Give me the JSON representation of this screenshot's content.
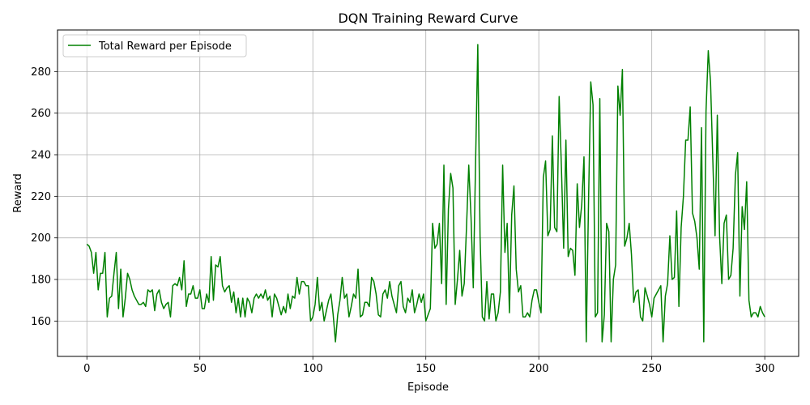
{
  "chart_data": {
    "type": "line",
    "title": "DQN Training Reward Curve",
    "xlabel": "Episode",
    "ylabel": "Reward",
    "xlim": [
      -13,
      315
    ],
    "ylim": [
      143,
      300
    ],
    "xticks": [
      0,
      50,
      100,
      150,
      200,
      250,
      300
    ],
    "yticks": [
      160,
      180,
      200,
      220,
      240,
      260,
      280
    ],
    "grid": true,
    "legend_position": "top-left",
    "series": [
      {
        "name": "Total Reward per Episode",
        "color": "#008000",
        "x": [
          0,
          1,
          2,
          3,
          4,
          5,
          6,
          7,
          8,
          9,
          10,
          11,
          12,
          13,
          14,
          15,
          16,
          17,
          18,
          19,
          20,
          21,
          22,
          23,
          24,
          25,
          26,
          27,
          28,
          29,
          30,
          31,
          32,
          33,
          34,
          35,
          36,
          37,
          38,
          39,
          40,
          41,
          42,
          43,
          44,
          45,
          46,
          47,
          48,
          49,
          50,
          51,
          52,
          53,
          54,
          55,
          56,
          57,
          58,
          59,
          60,
          61,
          62,
          63,
          64,
          65,
          66,
          67,
          68,
          69,
          70,
          71,
          72,
          73,
          74,
          75,
          76,
          77,
          78,
          79,
          80,
          81,
          82,
          83,
          84,
          85,
          86,
          87,
          88,
          89,
          90,
          91,
          92,
          93,
          94,
          95,
          96,
          97,
          98,
          99,
          100,
          101,
          102,
          103,
          104,
          105,
          106,
          107,
          108,
          109,
          110,
          111,
          112,
          113,
          114,
          115,
          116,
          117,
          118,
          119,
          120,
          121,
          122,
          123,
          124,
          125,
          126,
          127,
          128,
          129,
          130,
          131,
          132,
          133,
          134,
          135,
          136,
          137,
          138,
          139,
          140,
          141,
          142,
          143,
          144,
          145,
          146,
          147,
          148,
          149,
          150,
          151,
          152,
          153,
          154,
          155,
          156,
          157,
          158,
          159,
          160,
          161,
          162,
          163,
          164,
          165,
          166,
          167,
          168,
          169,
          170,
          171,
          172,
          173,
          174,
          175,
          176,
          177,
          178,
          179,
          180,
          181,
          182,
          183,
          184,
          185,
          186,
          187,
          188,
          189,
          190,
          191,
          192,
          193,
          194,
          195,
          196,
          197,
          198,
          199,
          200,
          201,
          202,
          203,
          204,
          205,
          206,
          207,
          208,
          209,
          210,
          211,
          212,
          213,
          214,
          215,
          216,
          217,
          218,
          219,
          220,
          221,
          222,
          223,
          224,
          225,
          226,
          227,
          228,
          229,
          230,
          231,
          232,
          233,
          234,
          235,
          236,
          237,
          238,
          239,
          240,
          241,
          242,
          243,
          244,
          245,
          246,
          247,
          248,
          249,
          250,
          251,
          252,
          253,
          254,
          255,
          256,
          257,
          258,
          259,
          260,
          261,
          262,
          263,
          264,
          265,
          266,
          267,
          268,
          269,
          270,
          271,
          272,
          273,
          274,
          275,
          276,
          277,
          278,
          279,
          280,
          281,
          282,
          283,
          284,
          285,
          286,
          287,
          288,
          289,
          290,
          291,
          292,
          293,
          294,
          295,
          296,
          297,
          298,
          299,
          300
        ],
        "y": [
          197,
          196,
          193,
          183,
          193,
          175,
          183,
          183,
          193,
          162,
          171,
          172,
          183,
          193,
          166,
          185,
          162,
          171,
          183,
          180,
          175,
          172,
          170,
          168,
          168,
          169,
          167,
          175,
          174,
          175,
          165,
          173,
          175,
          169,
          166,
          168,
          169,
          162,
          177,
          178,
          177,
          181,
          175,
          189,
          167,
          173,
          173,
          177,
          171,
          171,
          175,
          166,
          166,
          173,
          169,
          191,
          170,
          187,
          186,
          191,
          177,
          174,
          176,
          177,
          169,
          174,
          164,
          171,
          162,
          171,
          162,
          171,
          169,
          164,
          171,
          173,
          171,
          173,
          171,
          175,
          170,
          172,
          162,
          173,
          171,
          167,
          163,
          167,
          164,
          173,
          166,
          172,
          171,
          181,
          173,
          179,
          179,
          177,
          177,
          160,
          162,
          168,
          181,
          165,
          169,
          160,
          165,
          170,
          173,
          163,
          150,
          163,
          170,
          181,
          171,
          173,
          162,
          167,
          173,
          171,
          185,
          162,
          163,
          169,
          169,
          167,
          181,
          179,
          173,
          163,
          162,
          173,
          175,
          171,
          179,
          172,
          168,
          164,
          177,
          179,
          167,
          164,
          171,
          169,
          175,
          164,
          168,
          173,
          169,
          173,
          160,
          163,
          166,
          207,
          195,
          197,
          207,
          178,
          235,
          168,
          214,
          231,
          224,
          168,
          180,
          194,
          172,
          178,
          205,
          235,
          210,
          176,
          235,
          293,
          201,
          162,
          160,
          179,
          161,
          173,
          173,
          160,
          164,
          174,
          235,
          193,
          207,
          164,
          211,
          225,
          185,
          174,
          177,
          162,
          162,
          164,
          162,
          170,
          175,
          175,
          169,
          164,
          229,
          237,
          201,
          204,
          249,
          205,
          203,
          268,
          234,
          195,
          247,
          191,
          195,
          194,
          182,
          226,
          205,
          216,
          239,
          150,
          217,
          275,
          264,
          162,
          164,
          267,
          150,
          163,
          207,
          203,
          150,
          180,
          187,
          273,
          259,
          281,
          196,
          200,
          207,
          192,
          169,
          174,
          175,
          162,
          160,
          176,
          172,
          168,
          162,
          171,
          173,
          175,
          177,
          150,
          172,
          178,
          201,
          180,
          181,
          213,
          167,
          205,
          220,
          247,
          247,
          263,
          212,
          208,
          200,
          185,
          253,
          150,
          261,
          290,
          275,
          238,
          201,
          259,
          201,
          178,
          207,
          211,
          180,
          182,
          195,
          230,
          241,
          172,
          215,
          204,
          227,
          170,
          162,
          164,
          164,
          162,
          167,
          164,
          162
        ]
      }
    ]
  }
}
